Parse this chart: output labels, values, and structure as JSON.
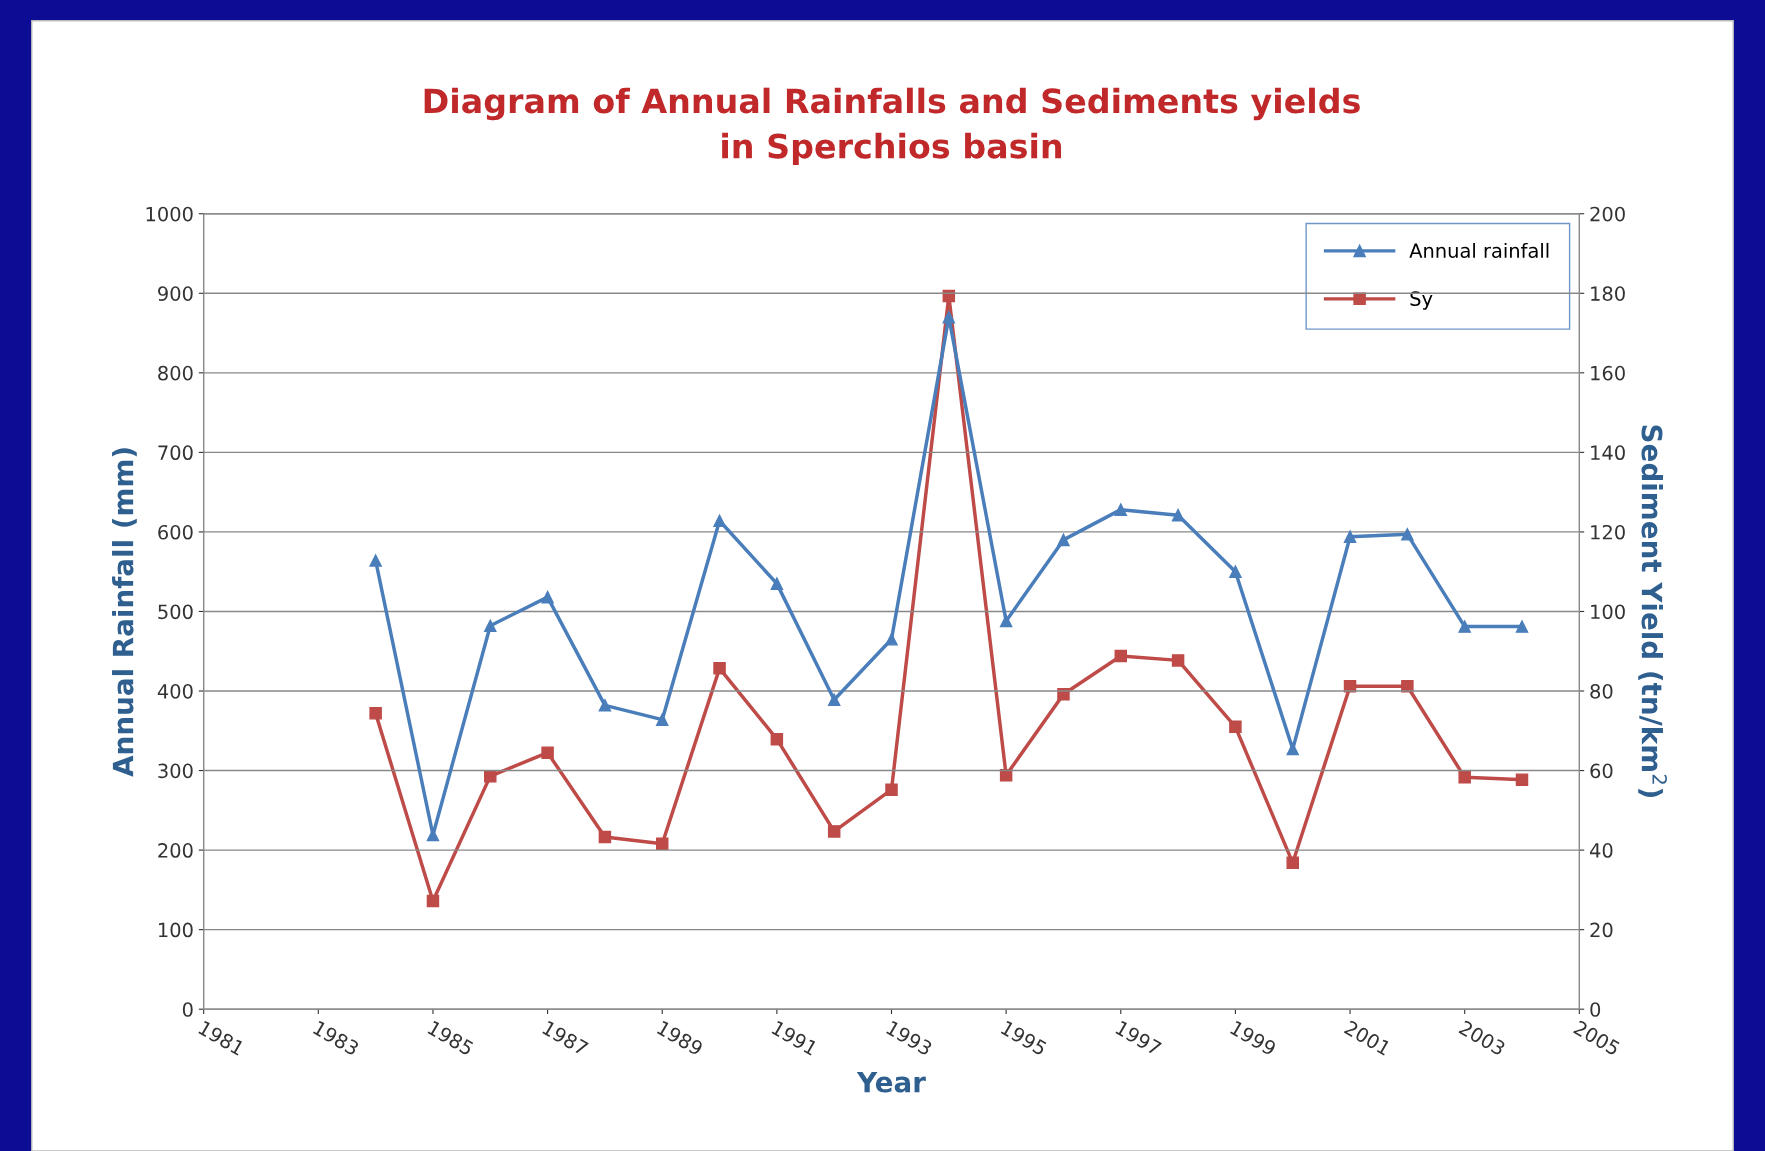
{
  "chart_data": {
    "type": "line",
    "title": "Diagram of Annual Rainfalls and Sediments yields\nin Sperchios basin",
    "xlabel": "Year",
    "ylabel": "Annual Rainfall (mm)",
    "y2label": "Sediment Yield (tn/km$^{2}$)",
    "x": [
      1984,
      1985,
      1986,
      1987,
      1988,
      1989,
      1990,
      1991,
      1992,
      1993,
      1994,
      1995,
      1996,
      1997,
      1998,
      1999,
      2000,
      2001,
      2002,
      2003,
      2004
    ],
    "series": [
      {
        "name": "Annual rainfall",
        "color": "#4a7ebb",
        "marker": "triangle",
        "values": [
          564,
          219,
          482,
          518,
          382,
          364,
          614,
          535,
          389,
          465,
          870,
          488,
          590,
          628,
          621,
          550,
          327,
          594,
          597,
          481,
          481
        ]
      },
      {
        "name": "Sy",
        "color": "#be4b48",
        "marker": "square",
        "axis": "y2",
        "values": [
          74.4,
          27.2,
          58.6,
          64.5,
          43.3,
          41.6,
          85.7,
          67.9,
          44.7,
          55.2,
          179.3,
          58.8,
          79.2,
          88.8,
          87.7,
          71.0,
          36.8,
          81.2,
          81.2,
          58.3,
          57.7
        ]
      }
    ],
    "xlim": [
      1981,
      2005
    ],
    "xticks": [
      1981,
      1983,
      1985,
      1987,
      1989,
      1991,
      1993,
      1995,
      1997,
      1999,
      2001,
      2003,
      2005
    ],
    "ylim": [
      0,
      1000
    ],
    "yticks": [
      0,
      100,
      200,
      300,
      400,
      500,
      600,
      700,
      800,
      900,
      1000
    ],
    "y2lim": [
      0,
      200
    ],
    "y2ticks": [
      0,
      20,
      40,
      60,
      80,
      100,
      120,
      140,
      160,
      180,
      200
    ],
    "grid": "y",
    "legend": "top right",
    "line_style": "solid"
  }
}
